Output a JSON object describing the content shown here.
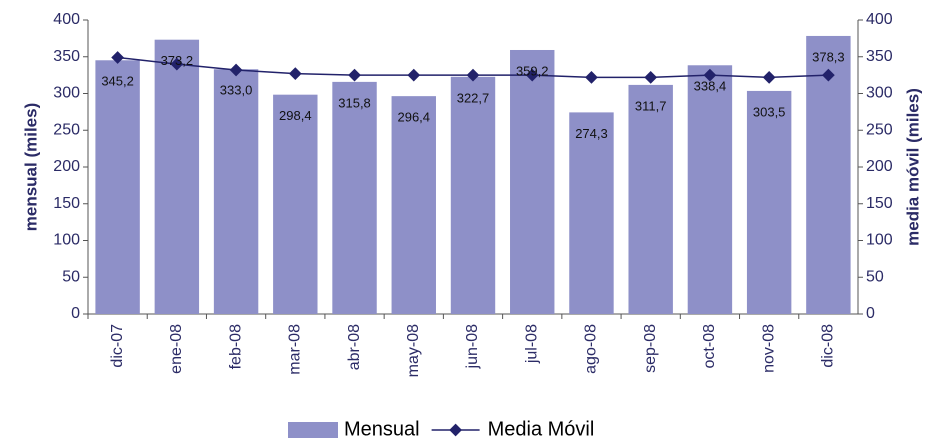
{
  "chart_data": {
    "type": "combo",
    "categories": [
      "dic-07",
      "ene-08",
      "feb-08",
      "mar-08",
      "abr-08",
      "may-08",
      "jun-08",
      "jul-08",
      "ago-08",
      "sep-08",
      "oct-08",
      "nov-08",
      "dic-08"
    ],
    "series": [
      {
        "name": "Mensual",
        "type": "bar",
        "color": "#8e90c8",
        "values": [
          345.2,
          373.2,
          333.0,
          298.4,
          315.8,
          296.4,
          322.7,
          359.2,
          274.3,
          311.7,
          338.4,
          303.5,
          378.3
        ],
        "value_labels": [
          "345,2",
          "373,2",
          "333,0",
          "298,4",
          "315,8",
          "296,4",
          "322,7",
          "359,2",
          "274,3",
          "311,7",
          "338,4",
          "303,5",
          "378,3"
        ]
      },
      {
        "name": "Media Móvil",
        "type": "line",
        "axis": "y2",
        "color": "#22226a",
        "values": [
          349,
          340,
          332,
          327,
          325,
          325,
          325,
          325,
          322,
          322,
          325,
          322,
          325
        ]
      }
    ],
    "ylabel": "mensual (miles)",
    "y2label": "media móvil (miles)",
    "ylim": [
      0,
      400
    ],
    "yticks": [
      0,
      50,
      100,
      150,
      200,
      250,
      300,
      350,
      400
    ],
    "y2lim": [
      0,
      400
    ],
    "y2ticks": [
      0,
      50,
      100,
      150,
      200,
      250,
      300,
      350,
      400
    ],
    "legend": "bottom"
  }
}
